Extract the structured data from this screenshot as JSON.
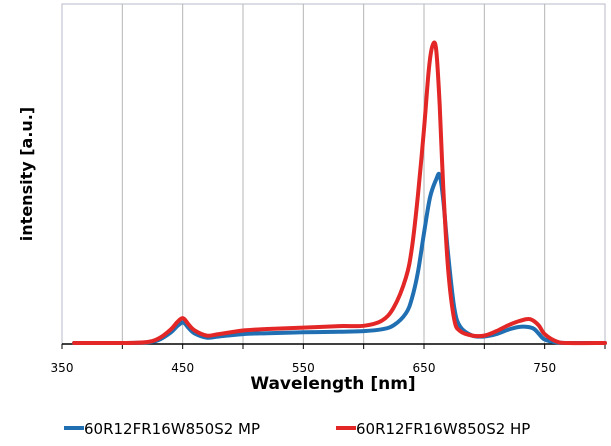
{
  "chart_data": {
    "type": "line",
    "xlabel": "Wavelength [nm]",
    "ylabel": "intensity [a.u.]",
    "xlim": [
      350,
      800
    ],
    "ylim": [
      0,
      1
    ],
    "x_ticks": [
      "350",
      "450",
      "550",
      "650",
      "750"
    ],
    "x_tick_values": [
      350,
      450,
      550,
      650,
      750
    ],
    "grid": {
      "vertical": true,
      "horizontal": false
    },
    "legend_position": "bottom",
    "series": [
      {
        "name": "60R12FR16W850S2 MP",
        "color": "#1f6fb2",
        "x": [
          360,
          400,
          420,
          430,
          440,
          445,
          448,
          450,
          452,
          455,
          460,
          470,
          480,
          500,
          520,
          550,
          580,
          600,
          615,
          625,
          635,
          640,
          645,
          650,
          655,
          660,
          663,
          666,
          670,
          675,
          680,
          690,
          700,
          710,
          720,
          730,
          740,
          745,
          750,
          760,
          770,
          800
        ],
        "y": [
          0,
          0,
          0.002,
          0.01,
          0.035,
          0.055,
          0.065,
          0.07,
          0.065,
          0.05,
          0.032,
          0.018,
          0.022,
          0.03,
          0.033,
          0.036,
          0.038,
          0.04,
          0.046,
          0.06,
          0.1,
          0.15,
          0.24,
          0.37,
          0.49,
          0.55,
          0.565,
          0.48,
          0.3,
          0.12,
          0.055,
          0.025,
          0.022,
          0.03,
          0.045,
          0.055,
          0.05,
          0.032,
          0.012,
          0.002,
          0,
          0
        ]
      },
      {
        "name": "60R12FR16W850S2 HP",
        "color": "#e32626",
        "x": [
          360,
          400,
          420,
          430,
          440,
          445,
          448,
          450,
          452,
          455,
          460,
          470,
          480,
          500,
          520,
          550,
          580,
          600,
          615,
          625,
          635,
          640,
          645,
          650,
          654,
          657,
          660,
          663,
          666,
          670,
          675,
          680,
          690,
          700,
          710,
          720,
          730,
          738,
          745,
          750,
          760,
          770,
          800
        ],
        "y": [
          0,
          0,
          0.003,
          0.015,
          0.045,
          0.068,
          0.08,
          0.084,
          0.078,
          0.062,
          0.042,
          0.025,
          0.03,
          0.042,
          0.047,
          0.052,
          0.057,
          0.058,
          0.075,
          0.12,
          0.22,
          0.32,
          0.5,
          0.72,
          0.92,
          1.0,
          0.99,
          0.8,
          0.52,
          0.25,
          0.08,
          0.04,
          0.025,
          0.025,
          0.04,
          0.06,
          0.075,
          0.08,
          0.06,
          0.03,
          0.005,
          0,
          0
        ]
      }
    ]
  }
}
